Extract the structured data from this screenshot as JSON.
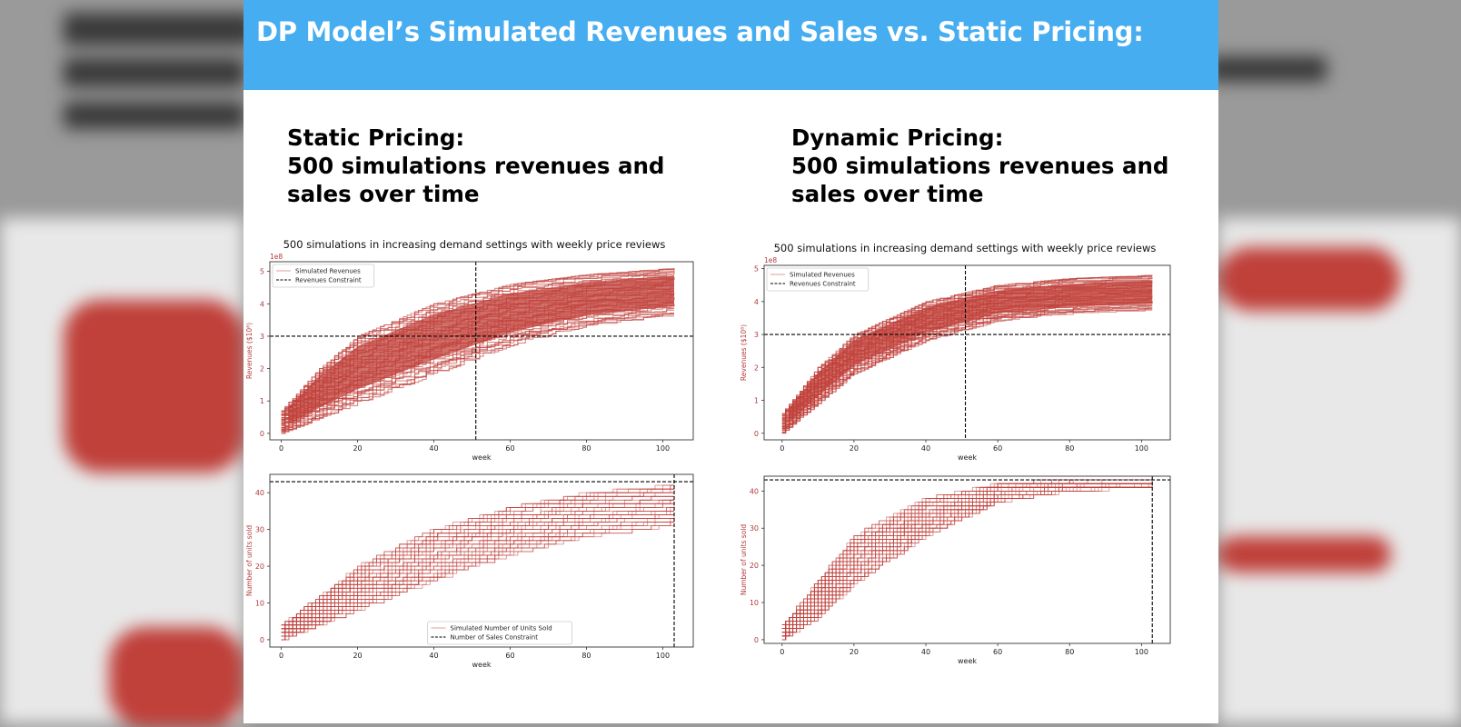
{
  "slide": {
    "title": "DP Model’s Simulated Revenues and Sales vs. Static Pricing:",
    "left_heading": [
      "Static Pricing:",
      "500 simulations revenues and",
      "sales over time"
    ],
    "right_heading": [
      "Dynamic Pricing:",
      "500 simulations revenues and",
      "sales over time"
    ]
  },
  "colors": {
    "banner": "#45adf0",
    "series": "#c0403a",
    "constraint": "#000000"
  },
  "chart_data": [
    {
      "type": "line",
      "panel": "static-revenues",
      "title": "500 simulations in increasing demand settings with weekly price reviews",
      "xlabel": "week",
      "ylabel": "Revenues ($10⁸)",
      "y_offset_label": "1e8",
      "xlim": [
        -3,
        108
      ],
      "ylim": [
        -0.2,
        5.3
      ],
      "xticks": [
        0,
        20,
        40,
        60,
        80,
        100
      ],
      "yticks": [
        0,
        1,
        2,
        3,
        4,
        5
      ],
      "legend": {
        "placement": "upper-left",
        "entries": [
          "Simulated Revenues",
          "Revenues Constraint"
        ]
      },
      "series": [
        {
          "name": "Simulated Revenues",
          "simulations": 500,
          "weeks": [
            0,
            103
          ],
          "envelope_low": [
            [
              0,
              0
            ],
            [
              20,
              0.9
            ],
            [
              40,
              1.8
            ],
            [
              60,
              2.7
            ],
            [
              80,
              3.3
            ],
            [
              103,
              3.6
            ]
          ],
          "envelope_high": [
            [
              0,
              0.7
            ],
            [
              10,
              2.0
            ],
            [
              20,
              3.0
            ],
            [
              40,
              4.0
            ],
            [
              60,
              4.6
            ],
            [
              80,
              4.9
            ],
            [
              103,
              5.1
            ]
          ]
        },
        {
          "name": "Revenues Constraint",
          "y": 3.0,
          "x": 51
        }
      ],
      "grid": false
    },
    {
      "type": "line",
      "panel": "static-units",
      "xlabel": "week",
      "ylabel": "Number of units sold",
      "xlim": [
        -3,
        108
      ],
      "ylim": [
        -2,
        45
      ],
      "xticks": [
        0,
        20,
        40,
        60,
        80,
        100
      ],
      "yticks": [
        0,
        10,
        20,
        30,
        40
      ],
      "legend": {
        "placement": "lower-center",
        "entries": [
          "Simulated Number of Units Sold",
          "Number of Sales Constraint"
        ]
      },
      "series": [
        {
          "name": "Simulated Number of Units Sold",
          "simulations": 500,
          "weeks": [
            0,
            103
          ],
          "envelope_low": [
            [
              0,
              0
            ],
            [
              20,
              8
            ],
            [
              40,
              16
            ],
            [
              60,
              23
            ],
            [
              80,
              28
            ],
            [
              103,
              31
            ]
          ],
          "envelope_high": [
            [
              0,
              4
            ],
            [
              20,
              20
            ],
            [
              40,
              30
            ],
            [
              60,
              36
            ],
            [
              80,
              40
            ],
            [
              103,
              42
            ]
          ]
        },
        {
          "name": "Number of Sales Constraint",
          "y": 43,
          "x": 103
        }
      ],
      "grid": false
    },
    {
      "type": "line",
      "panel": "dynamic-revenues",
      "title": "500 simulations in increasing demand settings with weekly price reviews",
      "xlabel": "week",
      "ylabel": "Revenues ($10⁸)",
      "y_offset_label": "1e8",
      "xlim": [
        -5,
        108
      ],
      "ylim": [
        -0.2,
        5.1
      ],
      "xticks": [
        0,
        20,
        40,
        60,
        80,
        100
      ],
      "yticks": [
        0,
        1,
        2,
        3,
        4,
        5
      ],
      "legend": {
        "placement": "upper-left",
        "entries": [
          "Simulated Revenues",
          "Revenues Constraint"
        ]
      },
      "series": [
        {
          "name": "Simulated Revenues",
          "simulations": 500,
          "weeks": [
            0,
            103
          ],
          "envelope_low": [
            [
              0,
              0
            ],
            [
              10,
              0.9
            ],
            [
              20,
              1.8
            ],
            [
              40,
              2.8
            ],
            [
              60,
              3.4
            ],
            [
              80,
              3.6
            ],
            [
              103,
              3.7
            ]
          ],
          "envelope_high": [
            [
              0,
              0.6
            ],
            [
              10,
              2.0
            ],
            [
              20,
              3.0
            ],
            [
              40,
              4.0
            ],
            [
              60,
              4.5
            ],
            [
              80,
              4.7
            ],
            [
              103,
              4.8
            ]
          ]
        },
        {
          "name": "Revenues Constraint",
          "y": 3.0,
          "x": 51
        }
      ],
      "grid": false
    },
    {
      "type": "line",
      "panel": "dynamic-units",
      "xlabel": "week",
      "ylabel": "Number of units sold",
      "xlim": [
        -5,
        108
      ],
      "ylim": [
        -1,
        44
      ],
      "xticks": [
        0,
        20,
        40,
        60,
        80,
        100
      ],
      "yticks": [
        0,
        10,
        20,
        30,
        40
      ],
      "series": [
        {
          "name": "Simulated Number of Units Sold",
          "simulations": 500,
          "weeks": [
            0,
            103
          ],
          "envelope_low": [
            [
              0,
              0
            ],
            [
              10,
              6
            ],
            [
              20,
              15
            ],
            [
              40,
              28
            ],
            [
              60,
              37
            ],
            [
              80,
              40
            ],
            [
              103,
              41
            ]
          ],
          "envelope_high": [
            [
              0,
              4
            ],
            [
              10,
              16
            ],
            [
              20,
              28
            ],
            [
              40,
              38
            ],
            [
              60,
              42
            ],
            [
              80,
              43
            ],
            [
              103,
              43
            ]
          ]
        },
        {
          "name": "Number of Sales Constraint",
          "y": 43,
          "x": 103
        }
      ],
      "grid": false
    }
  ]
}
